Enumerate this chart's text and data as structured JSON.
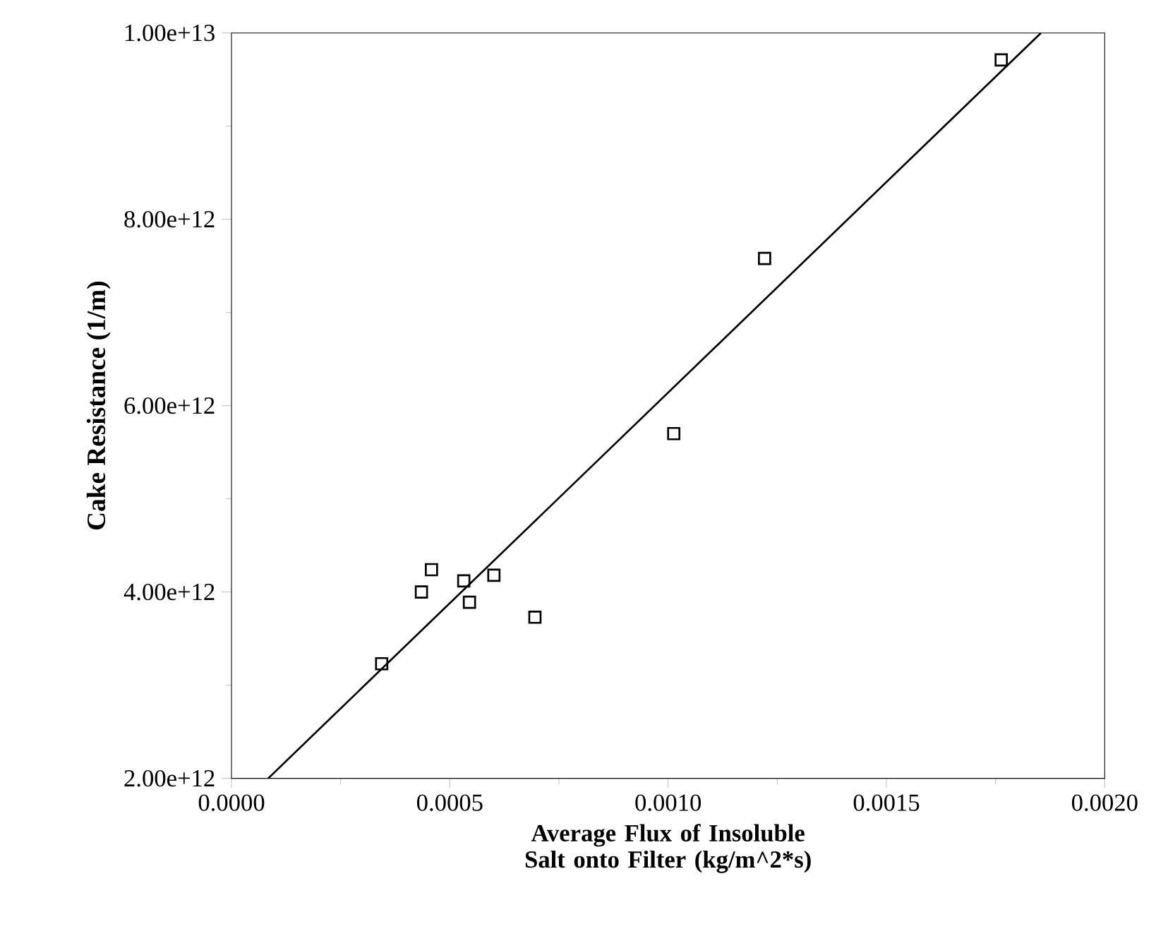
{
  "chart_data": {
    "type": "scatter",
    "xlabel": "Average Flux of Insoluble Salt onto Filter (kg/m^2*s)",
    "ylabel": "Cake Resistance (1/m)",
    "xlim": [
      0,
      0.002
    ],
    "ylim": [
      2000000000000.0,
      10000000000000.0
    ],
    "xticks": [
      {
        "value": 0,
        "label": "0.0000"
      },
      {
        "value": 0.0005,
        "label": "0.0005"
      },
      {
        "value": 0.001,
        "label": "0.0010"
      },
      {
        "value": 0.0015,
        "label": "0.0015"
      },
      {
        "value": 0.002,
        "label": "0.0020"
      }
    ],
    "yticks": [
      {
        "value": 2000000000000.0,
        "label": "2.00e+12"
      },
      {
        "value": 4000000000000.0,
        "label": "4.00e+12"
      },
      {
        "value": 6000000000000.0,
        "label": "6.00e+12"
      },
      {
        "value": 8000000000000.0,
        "label": "8.00e+12"
      },
      {
        "value": 10000000000000.0,
        "label": "1.00e+13"
      }
    ],
    "grid": false,
    "marker": "square",
    "series": [
      {
        "color": "#000000",
        "x": [
          0.000344,
          0.000435,
          0.000458,
          0.000532,
          0.000545,
          0.000601,
          0.000695,
          0.001013,
          0.001221,
          0.001763
        ],
        "values": [
          3230000000000.0,
          4000000000000.0,
          4240000000000.0,
          4120000000000.0,
          3890000000000.0,
          4180000000000.0,
          3730000000000.0,
          5700000000000.0,
          7580000000000.0,
          9710000000000.0
        ]
      },
      {
        "type": "line",
        "color": "#000000",
        "marker": "none",
        "line_style": "solid",
        "x": [
          8.4e-05,
          0.001854
        ],
        "values": [
          2000000000000.0,
          10000000000000.0
        ]
      }
    ]
  }
}
